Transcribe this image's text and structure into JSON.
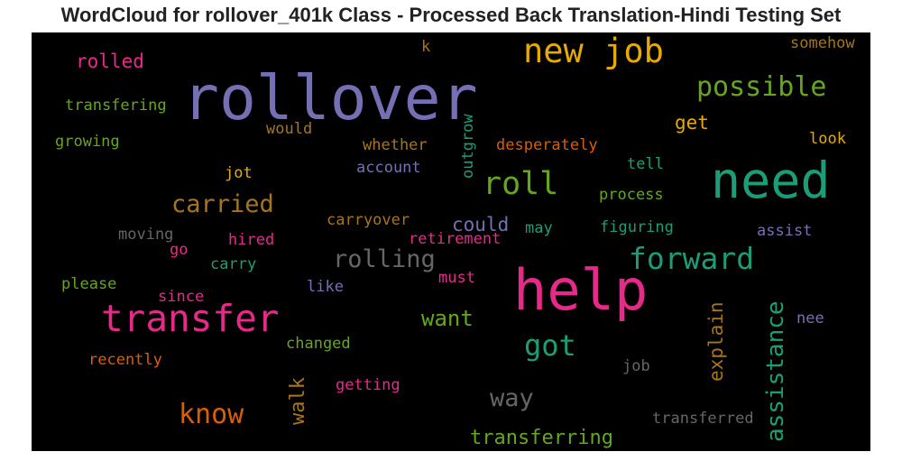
{
  "title": "WordCloud for rollover_401k Class - Processed Back Translation-Hindi Testing Set",
  "colors": {
    "background": "#000000",
    "title": "#222222",
    "purple": "#7570b3",
    "green": "#1b9e77",
    "pink": "#e7298a",
    "orange": "#d95f02",
    "olive": "#66a61e",
    "gold": "#e6ab02",
    "brown": "#a6761d",
    "gray": "#666666"
  },
  "words": [
    {
      "text": "rollover",
      "color": "#7570b3"
    },
    {
      "text": "help",
      "color": "#e7298a"
    },
    {
      "text": "need",
      "color": "#1b9e77"
    },
    {
      "text": "new job",
      "color": "#e6ab02"
    },
    {
      "text": "transfer",
      "color": "#e7298a"
    },
    {
      "text": "forward",
      "color": "#1b9e77"
    },
    {
      "text": "roll",
      "color": "#66a61e"
    },
    {
      "text": "possible",
      "color": "#66a61e"
    },
    {
      "text": "know",
      "color": "#d95f02"
    },
    {
      "text": "got",
      "color": "#1b9e77"
    },
    {
      "text": "carried",
      "color": "#a6761d"
    },
    {
      "text": "rolling",
      "color": "#666666"
    },
    {
      "text": "way",
      "color": "#666666"
    },
    {
      "text": "assistance",
      "color": "#1b9e77"
    },
    {
      "text": "want",
      "color": "#66a61e"
    },
    {
      "text": "transferring",
      "color": "#66a61e"
    },
    {
      "text": "explain",
      "color": "#a6761d"
    },
    {
      "text": "walk",
      "color": "#a6761d"
    },
    {
      "text": "rolled",
      "color": "#e7298a"
    },
    {
      "text": "could",
      "color": "#7570b3"
    },
    {
      "text": "get",
      "color": "#e6ab02"
    },
    {
      "text": "transferred",
      "color": "#666666"
    },
    {
      "text": "transfering",
      "color": "#66a61e"
    },
    {
      "text": "growing",
      "color": "#66a61e"
    },
    {
      "text": "would",
      "color": "#a6761d"
    },
    {
      "text": "whether",
      "color": "#a6761d"
    },
    {
      "text": "desperately",
      "color": "#d95f02"
    },
    {
      "text": "account",
      "color": "#7570b3"
    },
    {
      "text": "jot",
      "color": "#e6ab02"
    },
    {
      "text": "tell",
      "color": "#1b9e77"
    },
    {
      "text": "process",
      "color": "#66a61e"
    },
    {
      "text": "look",
      "color": "#e6ab02"
    },
    {
      "text": "somehow",
      "color": "#a6761d"
    },
    {
      "text": "k",
      "color": "#a6761d"
    },
    {
      "text": "outgrow",
      "color": "#1b9e77"
    },
    {
      "text": "carryover",
      "color": "#a6761d"
    },
    {
      "text": "may",
      "color": "#1b9e77"
    },
    {
      "text": "figuring",
      "color": "#1b9e77"
    },
    {
      "text": "assist",
      "color": "#7570b3"
    },
    {
      "text": "moving",
      "color": "#666666"
    },
    {
      "text": "go",
      "color": "#e7298a"
    },
    {
      "text": "hired",
      "color": "#e7298a"
    },
    {
      "text": "retirement",
      "color": "#e7298a"
    },
    {
      "text": "carry",
      "color": "#1b9e77"
    },
    {
      "text": "please",
      "color": "#66a61e"
    },
    {
      "text": "must",
      "color": "#e7298a"
    },
    {
      "text": "like",
      "color": "#7570b3"
    },
    {
      "text": "since",
      "color": "#e7298a"
    },
    {
      "text": "nee",
      "color": "#7570b3"
    },
    {
      "text": "changed",
      "color": "#66a61e"
    },
    {
      "text": "recently",
      "color": "#d95f02"
    },
    {
      "text": "job",
      "color": "#666666"
    },
    {
      "text": "getting",
      "color": "#e7298a"
    }
  ]
}
